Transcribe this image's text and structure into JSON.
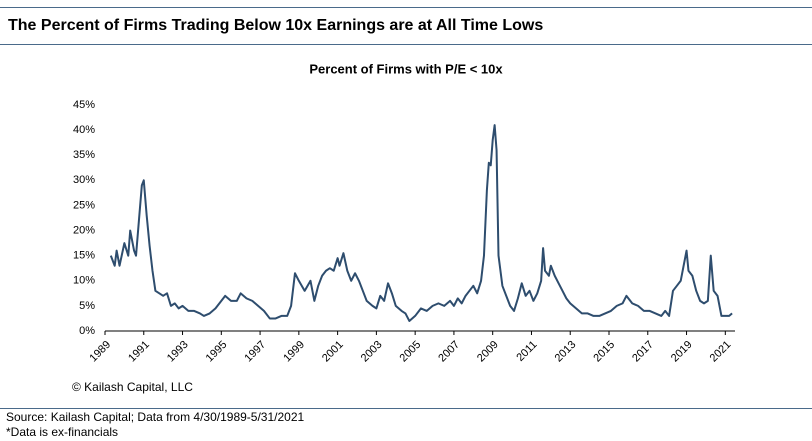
{
  "header": {
    "title": "The Percent of Firms Trading Below 10x Earnings are at All Time Lows"
  },
  "chart_data": {
    "type": "line",
    "title": "Percent of Firms with P/E < 10x",
    "annotation": "© Kailash Capital, LLC",
    "x": [
      1989.3,
      1989.5,
      1989.6,
      1989.75,
      1990,
      1990.2,
      1990.3,
      1990.5,
      1990.6,
      1990.75,
      1990.9,
      1991,
      1991.15,
      1991.3,
      1991.45,
      1991.6,
      1991.8,
      1992,
      1992.2,
      1992.4,
      1992.6,
      1992.8,
      1993,
      1993.3,
      1993.6,
      1993.9,
      1994.1,
      1994.4,
      1994.7,
      1995,
      1995.2,
      1995.5,
      1995.8,
      1996,
      1996.3,
      1996.6,
      1996.9,
      1997.2,
      1997.5,
      1997.8,
      1998.1,
      1998.4,
      1998.6,
      1998.8,
      1999,
      1999.3,
      1999.6,
      1999.8,
      2000,
      2000.2,
      2000.4,
      2000.6,
      2000.8,
      2001,
      2001.1,
      2001.3,
      2001.5,
      2001.7,
      2001.9,
      2002.1,
      2002.3,
      2002.5,
      2002.8,
      2003,
      2003.2,
      2003.4,
      2003.6,
      2003.8,
      2004,
      2004.3,
      2004.5,
      2004.7,
      2005,
      2005.3,
      2005.6,
      2005.9,
      2006.2,
      2006.5,
      2006.8,
      2007,
      2007.2,
      2007.4,
      2007.6,
      2007.8,
      2008,
      2008.2,
      2008.4,
      2008.55,
      2008.7,
      2008.8,
      2008.9,
      2009,
      2009.1,
      2009.2,
      2009.3,
      2009.5,
      2009.7,
      2009.9,
      2010.1,
      2010.3,
      2010.5,
      2010.7,
      2010.9,
      2011.1,
      2011.3,
      2011.5,
      2011.6,
      2011.7,
      2011.9,
      2012,
      2012.2,
      2012.4,
      2012.6,
      2012.8,
      2013,
      2013.3,
      2013.6,
      2013.9,
      2014.2,
      2014.5,
      2014.8,
      2015.1,
      2015.4,
      2015.7,
      2015.9,
      2016.2,
      2016.5,
      2016.8,
      2017.1,
      2017.4,
      2017.7,
      2017.9,
      2018.1,
      2018.3,
      2018.5,
      2018.7,
      2018.85,
      2019,
      2019.1,
      2019.3,
      2019.5,
      2019.7,
      2019.9,
      2020.1,
      2020.25,
      2020.4,
      2020.6,
      2020.8,
      2021,
      2021.2,
      2021.35
    ],
    "series": [
      {
        "name": "Percent of Firms with P/E < 10x",
        "color": "#2e4d6e",
        "values": [
          15,
          13,
          16,
          13,
          17.5,
          15,
          20,
          16,
          15,
          22,
          29,
          30,
          23,
          17,
          12,
          8,
          7.5,
          7,
          7.5,
          5,
          5.5,
          4.5,
          5,
          4,
          4,
          3.5,
          3,
          3.5,
          4.5,
          6,
          7,
          6,
          6,
          7.5,
          6.5,
          6,
          5,
          4,
          2.5,
          2.5,
          3,
          3,
          5,
          11.5,
          10,
          8,
          10,
          6,
          9,
          11,
          12,
          12.5,
          12,
          14.5,
          13,
          15.5,
          12,
          10,
          11.5,
          10,
          8,
          6,
          5,
          4.5,
          7,
          6,
          9.5,
          7.5,
          5,
          4,
          3.5,
          2,
          3,
          4.5,
          4,
          5,
          5.5,
          5,
          6,
          5,
          6.5,
          5.5,
          7,
          8,
          9,
          7.5,
          10,
          15,
          28,
          33.5,
          33,
          38,
          41,
          36,
          15,
          9,
          7,
          5,
          4,
          6.5,
          9.5,
          7,
          8,
          6,
          7.5,
          10,
          16.5,
          12,
          11,
          13,
          11,
          9.5,
          8,
          6.5,
          5.5,
          4.5,
          3.5,
          3.5,
          3,
          3,
          3.5,
          4,
          5,
          5.5,
          7,
          5.5,
          5,
          4,
          4,
          3.5,
          3,
          4,
          3,
          8,
          9,
          10,
          13,
          16,
          12,
          11,
          8,
          6,
          5.5,
          6,
          15,
          8,
          7,
          3,
          3,
          3,
          3.5
        ]
      }
    ],
    "xlim": [
      1989,
      2021.5
    ],
    "xticks": [
      1989,
      1991,
      1993,
      1995,
      1997,
      1999,
      2001,
      2003,
      2005,
      2007,
      2009,
      2011,
      2013,
      2015,
      2017,
      2019,
      2021
    ],
    "ylim": [
      0,
      45
    ],
    "yticks": [
      {
        "value": 0,
        "label": "0%"
      },
      {
        "value": 5,
        "label": "5%"
      },
      {
        "value": 10,
        "label": "10%"
      },
      {
        "value": 15,
        "label": "15%"
      },
      {
        "value": 20,
        "label": "20%"
      },
      {
        "value": 25,
        "label": "25%"
      },
      {
        "value": 30,
        "label": "30%"
      },
      {
        "value": 35,
        "label": "35%"
      },
      {
        "value": 40,
        "label": "40%"
      },
      {
        "value": 45,
        "label": "45%"
      }
    ],
    "grid": false
  },
  "footer": {
    "source": "Source: Kailash Capital; Data from 4/30/1989-5/31/2021",
    "note": "*Data is ex-financials"
  }
}
